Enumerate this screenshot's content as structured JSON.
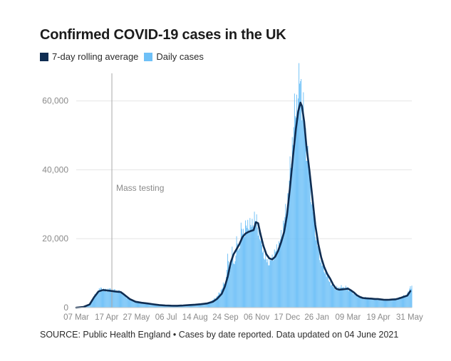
{
  "chart_data": {
    "type": "bar",
    "title": "Confirmed COVID-19 cases in the UK",
    "legend": [
      {
        "name": "7-day rolling average",
        "color": "#0f2d52",
        "kind": "line"
      },
      {
        "name": "Daily cases",
        "color": "#6ec0f7",
        "kind": "bar"
      }
    ],
    "xlabel": "",
    "ylabel": "",
    "ylim": [
      0,
      68000
    ],
    "yticks": [
      {
        "value": 0,
        "label": "0"
      },
      {
        "value": 20000,
        "label": "20,000"
      },
      {
        "value": 40000,
        "label": "40,000"
      },
      {
        "value": 60000,
        "label": "60,000"
      }
    ],
    "xticks": [
      {
        "day": 0,
        "label": "07 Mar"
      },
      {
        "day": 41,
        "label": "17 Apr"
      },
      {
        "day": 81,
        "label": "27 May"
      },
      {
        "day": 121,
        "label": "06 Jul"
      },
      {
        "day": 160,
        "label": "14 Aug"
      },
      {
        "day": 201,
        "label": "24 Sep"
      },
      {
        "day": 243,
        "label": "06 Nov"
      },
      {
        "day": 284,
        "label": "17 Dec"
      },
      {
        "day": 324,
        "label": "26 Jan"
      },
      {
        "day": 366,
        "label": "09 Mar"
      },
      {
        "day": 407,
        "label": "19 Apr"
      },
      {
        "day": 449,
        "label": "31 May"
      }
    ],
    "x_range_days": [
      0,
      452
    ],
    "annotation": {
      "day": 48,
      "label": "Mass testing"
    },
    "series": [
      {
        "name": "7-day rolling average",
        "points": [
          [
            0,
            0
          ],
          [
            10,
            200
          ],
          [
            18,
            900
          ],
          [
            24,
            3000
          ],
          [
            30,
            4700
          ],
          [
            36,
            5100
          ],
          [
            45,
            4900
          ],
          [
            52,
            4700
          ],
          [
            60,
            4500
          ],
          [
            65,
            3700
          ],
          [
            72,
            2500
          ],
          [
            80,
            1700
          ],
          [
            88,
            1400
          ],
          [
            96,
            1200
          ],
          [
            104,
            950
          ],
          [
            112,
            750
          ],
          [
            120,
            620
          ],
          [
            128,
            560
          ],
          [
            136,
            540
          ],
          [
            144,
            620
          ],
          [
            152,
            750
          ],
          [
            160,
            850
          ],
          [
            168,
            1000
          ],
          [
            176,
            1200
          ],
          [
            184,
            1700
          ],
          [
            190,
            2600
          ],
          [
            196,
            4000
          ],
          [
            200,
            6000
          ],
          [
            204,
            9000
          ],
          [
            208,
            13000
          ],
          [
            212,
            15500
          ],
          [
            216,
            17000
          ],
          [
            220,
            18500
          ],
          [
            224,
            20500
          ],
          [
            228,
            21500
          ],
          [
            232,
            22000
          ],
          [
            236,
            22300
          ],
          [
            239,
            22500
          ],
          [
            242,
            24800
          ],
          [
            245,
            24500
          ],
          [
            248,
            21500
          ],
          [
            252,
            18000
          ],
          [
            256,
            15500
          ],
          [
            260,
            14300
          ],
          [
            264,
            14000
          ],
          [
            268,
            14800
          ],
          [
            272,
            16500
          ],
          [
            276,
            19000
          ],
          [
            280,
            22000
          ],
          [
            284,
            27000
          ],
          [
            288,
            35000
          ],
          [
            292,
            44000
          ],
          [
            296,
            52000
          ],
          [
            299,
            57000
          ],
          [
            302,
            59500
          ],
          [
            304,
            58500
          ],
          [
            307,
            54000
          ],
          [
            310,
            47000
          ],
          [
            314,
            40000
          ],
          [
            318,
            32000
          ],
          [
            322,
            24000
          ],
          [
            326,
            18500
          ],
          [
            330,
            14500
          ],
          [
            334,
            11800
          ],
          [
            338,
            9800
          ],
          [
            342,
            8400
          ],
          [
            346,
            6700
          ],
          [
            350,
            5500
          ],
          [
            354,
            5200
          ],
          [
            358,
            5300
          ],
          [
            362,
            5400
          ],
          [
            366,
            5500
          ],
          [
            370,
            5000
          ],
          [
            374,
            4400
          ],
          [
            378,
            3600
          ],
          [
            382,
            3100
          ],
          [
            386,
            2800
          ],
          [
            390,
            2700
          ],
          [
            394,
            2650
          ],
          [
            398,
            2600
          ],
          [
            402,
            2500
          ],
          [
            406,
            2500
          ],
          [
            410,
            2400
          ],
          [
            414,
            2300
          ],
          [
            418,
            2250
          ],
          [
            422,
            2300
          ],
          [
            426,
            2350
          ],
          [
            430,
            2400
          ],
          [
            434,
            2600
          ],
          [
            438,
            2900
          ],
          [
            442,
            3200
          ],
          [
            446,
            3500
          ],
          [
            450,
            4800
          ]
        ]
      },
      {
        "name": "Daily cases",
        "points": [
          [
            0,
            0
          ],
          [
            10,
            200
          ],
          [
            18,
            1000
          ],
          [
            24,
            3200
          ],
          [
            28,
            4500
          ],
          [
            33,
            5600
          ],
          [
            38,
            5100
          ],
          [
            44,
            5300
          ],
          [
            50,
            5000
          ],
          [
            56,
            4800
          ],
          [
            62,
            4200
          ],
          [
            70,
            2600
          ],
          [
            80,
            1900
          ],
          [
            90,
            1400
          ],
          [
            100,
            1050
          ],
          [
            110,
            800
          ],
          [
            120,
            650
          ],
          [
            130,
            600
          ],
          [
            140,
            580
          ],
          [
            150,
            800
          ],
          [
            160,
            1000
          ],
          [
            170,
            1200
          ],
          [
            180,
            1600
          ],
          [
            188,
            2800
          ],
          [
            194,
            4500
          ],
          [
            198,
            6500
          ],
          [
            201,
            7000
          ],
          [
            204,
            14000
          ],
          [
            207,
            11000
          ],
          [
            210,
            16000
          ],
          [
            213,
            12000
          ],
          [
            216,
            19000
          ],
          [
            219,
            16000
          ],
          [
            222,
            23000
          ],
          [
            225,
            21000
          ],
          [
            228,
            24000
          ],
          [
            231,
            23000
          ],
          [
            234,
            25000
          ],
          [
            237,
            23000
          ],
          [
            240,
            27000
          ],
          [
            243,
            24000
          ],
          [
            246,
            22000
          ],
          [
            249,
            19000
          ],
          [
            252,
            16000
          ],
          [
            255,
            14000
          ],
          [
            258,
            13500
          ],
          [
            261,
            13000
          ],
          [
            264,
            14500
          ],
          [
            267,
            15500
          ],
          [
            270,
            17000
          ],
          [
            273,
            18000
          ],
          [
            276,
            20500
          ],
          [
            279,
            24000
          ],
          [
            282,
            27000
          ],
          [
            285,
            32000
          ],
          [
            288,
            39000
          ],
          [
            291,
            48000
          ],
          [
            294,
            55000
          ],
          [
            297,
            60000
          ],
          [
            300,
            63000
          ],
          [
            302,
            68000
          ],
          [
            304,
            60000
          ],
          [
            306,
            56000
          ],
          [
            308,
            52000
          ],
          [
            311,
            45000
          ],
          [
            314,
            38000
          ],
          [
            317,
            32000
          ],
          [
            320,
            26000
          ],
          [
            323,
            21000
          ],
          [
            326,
            17000
          ],
          [
            329,
            14000
          ],
          [
            332,
            12000
          ],
          [
            336,
            10000
          ],
          [
            340,
            8200
          ],
          [
            344,
            6600
          ],
          [
            348,
            5800
          ],
          [
            352,
            5600
          ],
          [
            356,
            6000
          ],
          [
            360,
            5700
          ],
          [
            364,
            5900
          ],
          [
            368,
            5200
          ],
          [
            372,
            4600
          ],
          [
            376,
            3800
          ],
          [
            380,
            3200
          ],
          [
            384,
            2900
          ],
          [
            390,
            2800
          ],
          [
            396,
            2600
          ],
          [
            402,
            2550
          ],
          [
            408,
            2450
          ],
          [
            414,
            2300
          ],
          [
            420,
            2300
          ],
          [
            426,
            2500
          ],
          [
            432,
            2600
          ],
          [
            438,
            3000
          ],
          [
            444,
            3600
          ],
          [
            448,
            4500
          ],
          [
            450,
            6200
          ]
        ]
      }
    ]
  },
  "source_text": "SOURCE: Public Health England • Cases by date reported. Data updated on 04 June 2021"
}
